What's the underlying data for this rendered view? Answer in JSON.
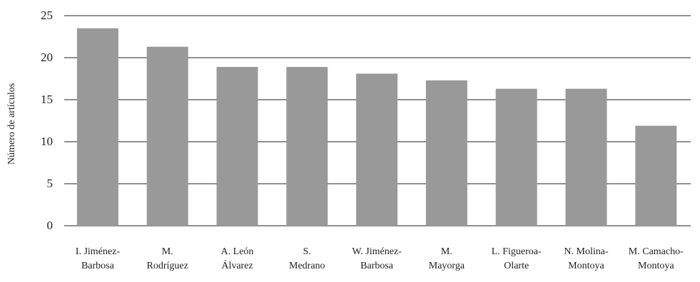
{
  "chart_data": {
    "type": "bar",
    "title": "",
    "xlabel": "",
    "ylabel": "Número de artículos",
    "ylim": [
      0,
      25
    ],
    "yticks": [
      0,
      5,
      10,
      15,
      20,
      25
    ],
    "grid": true,
    "bar_color": "#999999",
    "categories": [
      [
        "I. Jiménez-",
        "Barbosa"
      ],
      [
        "M.",
        "Rodríguez"
      ],
      [
        "A. León",
        "Álvarez"
      ],
      [
        "S.",
        "Medrano"
      ],
      [
        "W. Jiménez-",
        "Barbosa"
      ],
      [
        "M.",
        "Mayorga"
      ],
      [
        "L. Figueroa-",
        "Olarte"
      ],
      [
        "N. Molina-",
        "Montoya"
      ],
      [
        "M. Camacho-",
        "Montoya"
      ]
    ],
    "values": [
      23.5,
      21.3,
      18.9,
      18.9,
      18.1,
      17.3,
      16.3,
      16.3,
      11.9
    ]
  }
}
